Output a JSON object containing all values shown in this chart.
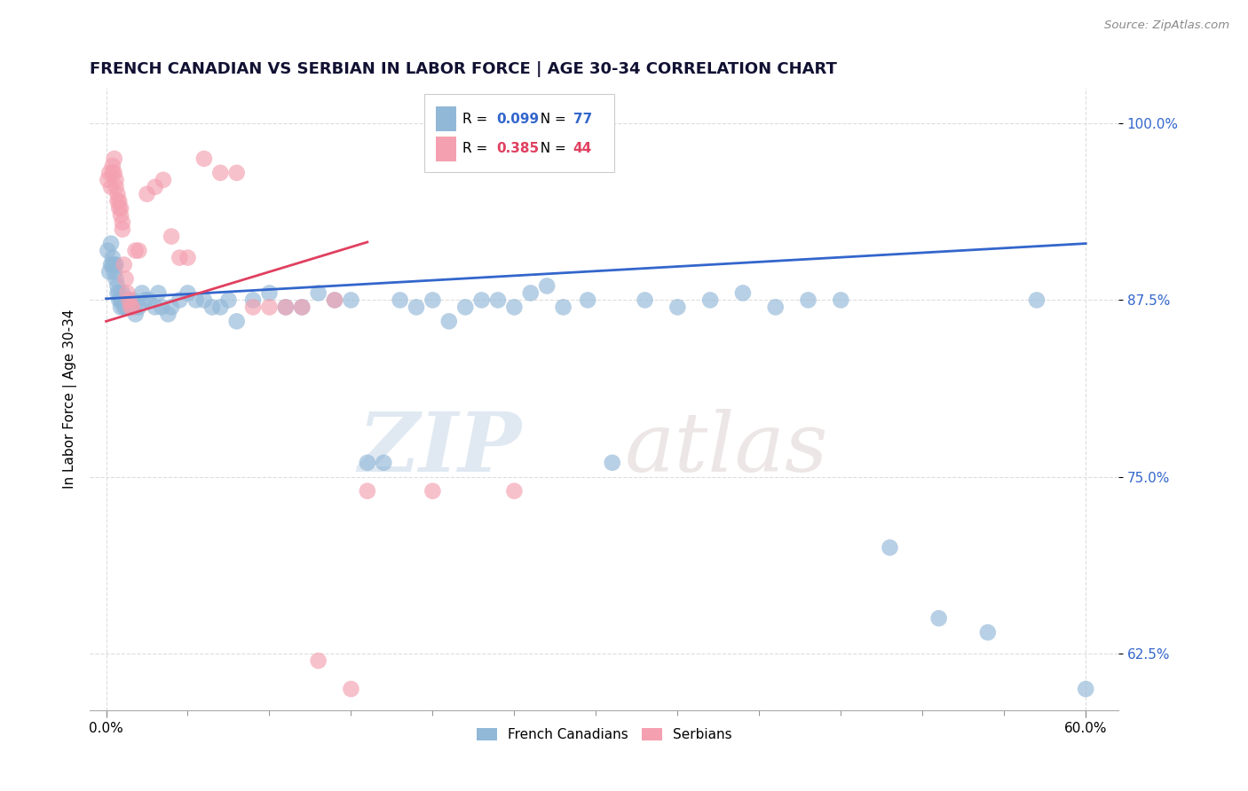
{
  "title": "FRENCH CANADIAN VS SERBIAN IN LABOR FORCE | AGE 30-34 CORRELATION CHART",
  "source_text": "Source: ZipAtlas.com",
  "ylabel": "In Labor Force | Age 30-34",
  "xlim": [
    -0.01,
    0.62
  ],
  "ylim": [
    0.585,
    1.025
  ],
  "blue_color": "#92b8d8",
  "pink_color": "#f4a0b0",
  "blue_line_color": "#3366cc",
  "pink_line_color": "#e04060",
  "legend_R_blue": "0.099",
  "legend_N_blue": "77",
  "legend_R_pink": "0.385",
  "legend_N_pink": "44",
  "watermark_zip": "ZIP",
  "watermark_atlas": "atlas",
  "blue_x": [
    0.001,
    0.002,
    0.003,
    0.003,
    0.004,
    0.004,
    0.005,
    0.005,
    0.006,
    0.006,
    0.007,
    0.007,
    0.008,
    0.008,
    0.009,
    0.009,
    0.01,
    0.01,
    0.011,
    0.012,
    0.013,
    0.014,
    0.015,
    0.016,
    0.017,
    0.018,
    0.02,
    0.022,
    0.024,
    0.026,
    0.03,
    0.032,
    0.034,
    0.038,
    0.04,
    0.045,
    0.05,
    0.055,
    0.06,
    0.065,
    0.07,
    0.075,
    0.08,
    0.09,
    0.1,
    0.11,
    0.12,
    0.13,
    0.14,
    0.15,
    0.16,
    0.17,
    0.18,
    0.19,
    0.2,
    0.21,
    0.22,
    0.23,
    0.24,
    0.25,
    0.26,
    0.27,
    0.28,
    0.295,
    0.31,
    0.33,
    0.35,
    0.37,
    0.39,
    0.41,
    0.43,
    0.45,
    0.48,
    0.51,
    0.54,
    0.57,
    0.6
  ],
  "blue_y": [
    0.91,
    0.895,
    0.9,
    0.915,
    0.9,
    0.905,
    0.895,
    0.9,
    0.89,
    0.9,
    0.88,
    0.885,
    0.875,
    0.88,
    0.87,
    0.875,
    0.875,
    0.88,
    0.87,
    0.87,
    0.87,
    0.875,
    0.87,
    0.875,
    0.87,
    0.865,
    0.87,
    0.88,
    0.875,
    0.875,
    0.87,
    0.88,
    0.87,
    0.865,
    0.87,
    0.875,
    0.88,
    0.875,
    0.875,
    0.87,
    0.87,
    0.875,
    0.86,
    0.875,
    0.88,
    0.87,
    0.87,
    0.88,
    0.875,
    0.875,
    0.76,
    0.76,
    0.875,
    0.87,
    0.875,
    0.86,
    0.87,
    0.875,
    0.875,
    0.87,
    0.88,
    0.885,
    0.87,
    0.875,
    0.76,
    0.875,
    0.87,
    0.875,
    0.88,
    0.87,
    0.875,
    0.875,
    0.7,
    0.65,
    0.64,
    0.875,
    0.6
  ],
  "pink_x": [
    0.001,
    0.002,
    0.003,
    0.004,
    0.004,
    0.005,
    0.005,
    0.006,
    0.006,
    0.007,
    0.007,
    0.008,
    0.008,
    0.009,
    0.009,
    0.01,
    0.01,
    0.011,
    0.012,
    0.013,
    0.014,
    0.015,
    0.016,
    0.018,
    0.02,
    0.025,
    0.03,
    0.035,
    0.04,
    0.045,
    0.05,
    0.06,
    0.07,
    0.08,
    0.09,
    0.1,
    0.11,
    0.12,
    0.13,
    0.14,
    0.15,
    0.16,
    0.2,
    0.25
  ],
  "pink_y": [
    0.96,
    0.965,
    0.955,
    0.97,
    0.965,
    0.975,
    0.965,
    0.96,
    0.955,
    0.945,
    0.95,
    0.94,
    0.945,
    0.935,
    0.94,
    0.93,
    0.925,
    0.9,
    0.89,
    0.88,
    0.875,
    0.87,
    0.87,
    0.91,
    0.91,
    0.95,
    0.955,
    0.96,
    0.92,
    0.905,
    0.905,
    0.975,
    0.965,
    0.965,
    0.87,
    0.87,
    0.87,
    0.87,
    0.62,
    0.875,
    0.6,
    0.74,
    0.74,
    0.74
  ]
}
